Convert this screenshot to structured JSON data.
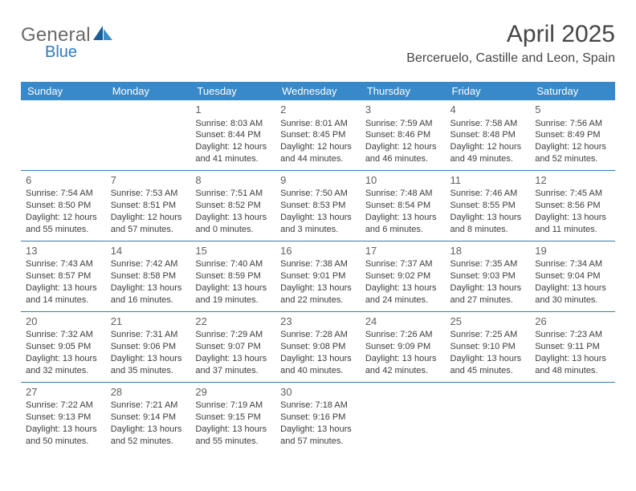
{
  "brand": {
    "word1": "General",
    "word2": "Blue"
  },
  "title": "April 2025",
  "subtitle": "Berceruelo, Castille and Leon, Spain",
  "colors": {
    "header_bg": "#3789c9",
    "header_text": "#ffffff",
    "cell_border": "#3d79a9",
    "text": "#3c3c3c",
    "brand_gray": "#6a6a6a",
    "brand_blue": "#2f7bbf"
  },
  "calendar": {
    "days_of_week": [
      "Sunday",
      "Monday",
      "Tuesday",
      "Wednesday",
      "Thursday",
      "Friday",
      "Saturday"
    ],
    "first_weekday_index": 2,
    "days": [
      {
        "n": 1,
        "sr": "8:03 AM",
        "ss": "8:44 PM",
        "dl": "12 hours and 41 minutes."
      },
      {
        "n": 2,
        "sr": "8:01 AM",
        "ss": "8:45 PM",
        "dl": "12 hours and 44 minutes."
      },
      {
        "n": 3,
        "sr": "7:59 AM",
        "ss": "8:46 PM",
        "dl": "12 hours and 46 minutes."
      },
      {
        "n": 4,
        "sr": "7:58 AM",
        "ss": "8:48 PM",
        "dl": "12 hours and 49 minutes."
      },
      {
        "n": 5,
        "sr": "7:56 AM",
        "ss": "8:49 PM",
        "dl": "12 hours and 52 minutes."
      },
      {
        "n": 6,
        "sr": "7:54 AM",
        "ss": "8:50 PM",
        "dl": "12 hours and 55 minutes."
      },
      {
        "n": 7,
        "sr": "7:53 AM",
        "ss": "8:51 PM",
        "dl": "12 hours and 57 minutes."
      },
      {
        "n": 8,
        "sr": "7:51 AM",
        "ss": "8:52 PM",
        "dl": "13 hours and 0 minutes."
      },
      {
        "n": 9,
        "sr": "7:50 AM",
        "ss": "8:53 PM",
        "dl": "13 hours and 3 minutes."
      },
      {
        "n": 10,
        "sr": "7:48 AM",
        "ss": "8:54 PM",
        "dl": "13 hours and 6 minutes."
      },
      {
        "n": 11,
        "sr": "7:46 AM",
        "ss": "8:55 PM",
        "dl": "13 hours and 8 minutes."
      },
      {
        "n": 12,
        "sr": "7:45 AM",
        "ss": "8:56 PM",
        "dl": "13 hours and 11 minutes."
      },
      {
        "n": 13,
        "sr": "7:43 AM",
        "ss": "8:57 PM",
        "dl": "13 hours and 14 minutes."
      },
      {
        "n": 14,
        "sr": "7:42 AM",
        "ss": "8:58 PM",
        "dl": "13 hours and 16 minutes."
      },
      {
        "n": 15,
        "sr": "7:40 AM",
        "ss": "8:59 PM",
        "dl": "13 hours and 19 minutes."
      },
      {
        "n": 16,
        "sr": "7:38 AM",
        "ss": "9:01 PM",
        "dl": "13 hours and 22 minutes."
      },
      {
        "n": 17,
        "sr": "7:37 AM",
        "ss": "9:02 PM",
        "dl": "13 hours and 24 minutes."
      },
      {
        "n": 18,
        "sr": "7:35 AM",
        "ss": "9:03 PM",
        "dl": "13 hours and 27 minutes."
      },
      {
        "n": 19,
        "sr": "7:34 AM",
        "ss": "9:04 PM",
        "dl": "13 hours and 30 minutes."
      },
      {
        "n": 20,
        "sr": "7:32 AM",
        "ss": "9:05 PM",
        "dl": "13 hours and 32 minutes."
      },
      {
        "n": 21,
        "sr": "7:31 AM",
        "ss": "9:06 PM",
        "dl": "13 hours and 35 minutes."
      },
      {
        "n": 22,
        "sr": "7:29 AM",
        "ss": "9:07 PM",
        "dl": "13 hours and 37 minutes."
      },
      {
        "n": 23,
        "sr": "7:28 AM",
        "ss": "9:08 PM",
        "dl": "13 hours and 40 minutes."
      },
      {
        "n": 24,
        "sr": "7:26 AM",
        "ss": "9:09 PM",
        "dl": "13 hours and 42 minutes."
      },
      {
        "n": 25,
        "sr": "7:25 AM",
        "ss": "9:10 PM",
        "dl": "13 hours and 45 minutes."
      },
      {
        "n": 26,
        "sr": "7:23 AM",
        "ss": "9:11 PM",
        "dl": "13 hours and 48 minutes."
      },
      {
        "n": 27,
        "sr": "7:22 AM",
        "ss": "9:13 PM",
        "dl": "13 hours and 50 minutes."
      },
      {
        "n": 28,
        "sr": "7:21 AM",
        "ss": "9:14 PM",
        "dl": "13 hours and 52 minutes."
      },
      {
        "n": 29,
        "sr": "7:19 AM",
        "ss": "9:15 PM",
        "dl": "13 hours and 55 minutes."
      },
      {
        "n": 30,
        "sr": "7:18 AM",
        "ss": "9:16 PM",
        "dl": "13 hours and 57 minutes."
      }
    ],
    "labels": {
      "sunrise": "Sunrise: ",
      "sunset": "Sunset: ",
      "daylight": "Daylight: "
    }
  }
}
